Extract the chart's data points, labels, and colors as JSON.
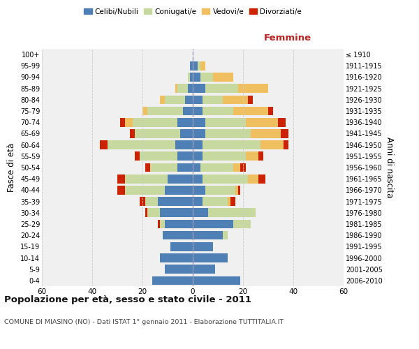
{
  "age_groups": [
    "0-4",
    "5-9",
    "10-14",
    "15-19",
    "20-24",
    "25-29",
    "30-34",
    "35-39",
    "40-44",
    "45-49",
    "50-54",
    "55-59",
    "60-64",
    "65-69",
    "70-74",
    "75-79",
    "80-84",
    "85-89",
    "90-94",
    "95-99",
    "100+"
  ],
  "birth_years": [
    "2006-2010",
    "2001-2005",
    "1996-2000",
    "1991-1995",
    "1986-1990",
    "1981-1985",
    "1976-1980",
    "1971-1975",
    "1966-1970",
    "1961-1965",
    "1956-1960",
    "1951-1955",
    "1946-1950",
    "1941-1945",
    "1936-1940",
    "1931-1935",
    "1926-1930",
    "1921-1925",
    "1916-1920",
    "1911-1915",
    "≤ 1910"
  ],
  "males": {
    "celibe": [
      16,
      11,
      13,
      9,
      12,
      11,
      13,
      14,
      11,
      10,
      6,
      6,
      7,
      5,
      6,
      4,
      3,
      2,
      1,
      1,
      0
    ],
    "coniugato": [
      0,
      0,
      0,
      0,
      0,
      2,
      5,
      5,
      16,
      17,
      11,
      15,
      27,
      18,
      18,
      14,
      8,
      4,
      1,
      0,
      0
    ],
    "vedovo": [
      0,
      0,
      0,
      0,
      0,
      0,
      0,
      0,
      0,
      0,
      0,
      0,
      0,
      0,
      3,
      2,
      2,
      1,
      0,
      0,
      0
    ],
    "divorziato": [
      0,
      0,
      0,
      0,
      0,
      1,
      1,
      2,
      3,
      3,
      2,
      2,
      3,
      2,
      2,
      0,
      0,
      0,
      0,
      0,
      0
    ]
  },
  "females": {
    "nubile": [
      19,
      9,
      14,
      8,
      12,
      16,
      6,
      4,
      5,
      4,
      3,
      4,
      4,
      5,
      5,
      4,
      4,
      5,
      3,
      2,
      0
    ],
    "coniugata": [
      0,
      0,
      0,
      0,
      2,
      7,
      19,
      10,
      12,
      18,
      13,
      17,
      23,
      18,
      16,
      12,
      8,
      13,
      5,
      1,
      0
    ],
    "vedova": [
      0,
      0,
      0,
      0,
      0,
      0,
      0,
      1,
      1,
      4,
      3,
      5,
      9,
      12,
      13,
      14,
      10,
      12,
      8,
      2,
      0
    ],
    "divorziata": [
      0,
      0,
      0,
      0,
      0,
      0,
      0,
      2,
      1,
      3,
      2,
      2,
      2,
      3,
      3,
      2,
      2,
      0,
      0,
      0,
      0
    ]
  },
  "color_celibe": "#4e7fb5",
  "color_coniugato": "#c8d9a0",
  "color_vedovo": "#f0c060",
  "color_divorziato": "#cc2200",
  "xlim": 60,
  "title": "Popolazione per età, sesso e stato civile - 2011",
  "subtitle": "COMUNE DI MIASINO (NO) - Dati ISTAT 1° gennaio 2011 - Elaborazione TUTTITALIA.IT",
  "ylabel_left": "Fasce di età",
  "ylabel_right": "Anni di nascita",
  "xlabel_right": "Femmine",
  "bg_color": "#f0f0f0",
  "grid_color": "#cccccc"
}
